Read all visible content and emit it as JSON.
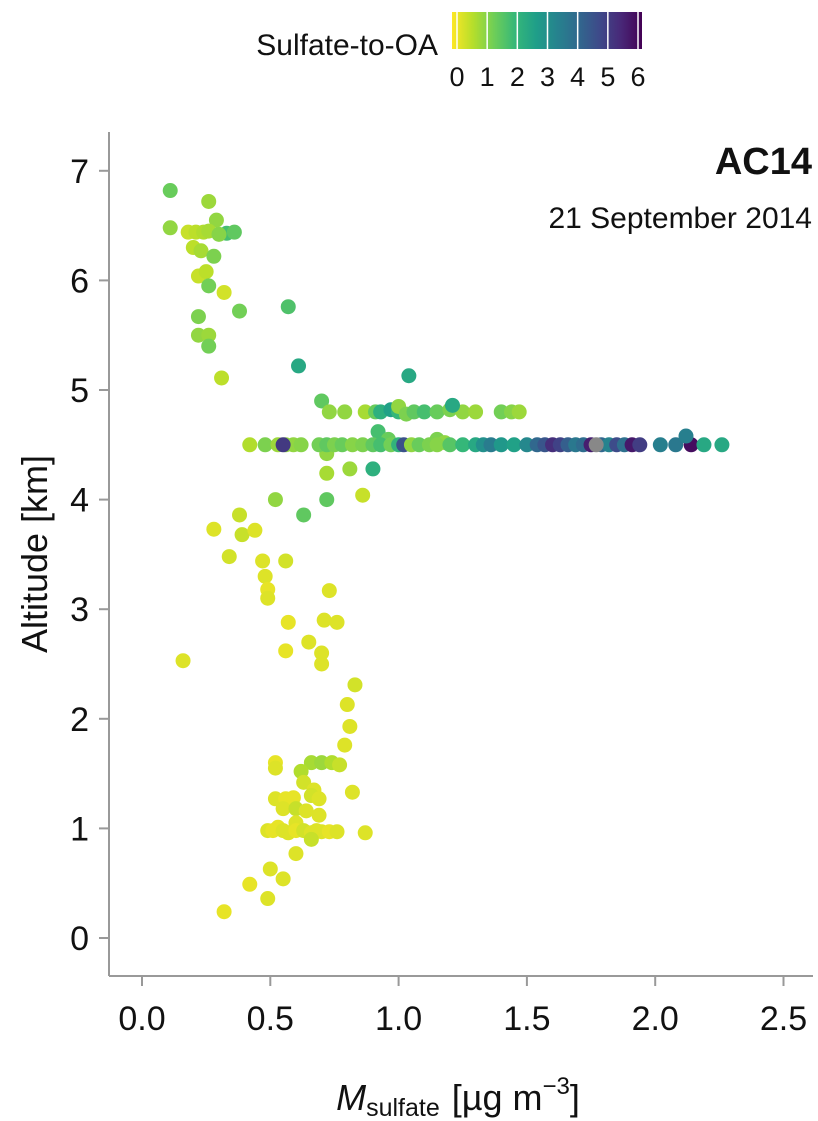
{
  "chart_data": {
    "type": "scatter",
    "title": "AC14",
    "subtitle": "21 September 2014",
    "xlabel": {
      "main": "M",
      "sub": "sulfate",
      "units": "[µg m",
      "exp": "−3",
      "close": "]"
    },
    "ylabel": "Altitude [km]",
    "xlim": [
      -0.13,
      2.62
    ],
    "ylim": [
      -0.35,
      7.35
    ],
    "xticks": [
      0.0,
      0.5,
      1.0,
      1.5,
      2.0,
      2.5
    ],
    "xtick_labels": [
      "0.0",
      "0.5",
      "1.0",
      "1.5",
      "2.0",
      "2.5"
    ],
    "yticks": [
      0,
      1,
      2,
      3,
      4,
      5,
      6,
      7
    ],
    "ytick_labels": [
      "0",
      "1",
      "2",
      "3",
      "4",
      "5",
      "6",
      "7"
    ],
    "grid": false,
    "colorbar": {
      "title": "Sulfate-to-OA",
      "range": [
        0,
        6
      ],
      "ticks": [
        0,
        1,
        2,
        3,
        4,
        5,
        6
      ],
      "tick_labels": [
        "0",
        "1",
        "2",
        "3",
        "4",
        "5",
        "6"
      ],
      "colormap": "viridis_r",
      "stops": [
        "#fde725",
        "#b5de2b",
        "#6ece58",
        "#35b779",
        "#1f9e89",
        "#26828e",
        "#31688e",
        "#3e4989",
        "#482878",
        "#440154"
      ]
    },
    "nan_color": "#888888",
    "series": [
      {
        "points": [
          [
            0.11,
            6.82,
            1.4
          ],
          [
            0.11,
            6.48,
            1.0
          ],
          [
            0.26,
            6.72,
            0.9
          ],
          [
            0.29,
            6.55,
            1.0
          ],
          [
            0.18,
            6.44,
            0.5
          ],
          [
            0.21,
            6.44,
            0.6
          ],
          [
            0.24,
            6.44,
            0.7
          ],
          [
            0.26,
            6.45,
            0.8
          ],
          [
            0.33,
            6.43,
            1.8
          ],
          [
            0.36,
            6.44,
            1.5
          ],
          [
            0.3,
            6.42,
            1.1
          ],
          [
            0.2,
            6.3,
            0.6
          ],
          [
            0.23,
            6.27,
            0.8
          ],
          [
            0.28,
            6.22,
            1.2
          ],
          [
            0.22,
            6.04,
            0.5
          ],
          [
            0.25,
            6.08,
            0.6
          ],
          [
            0.26,
            5.95,
            1.3
          ],
          [
            0.32,
            5.89,
            0.4
          ],
          [
            0.38,
            5.72,
            1.3
          ],
          [
            0.22,
            5.67,
            1.2
          ],
          [
            0.22,
            5.5,
            1.0
          ],
          [
            0.26,
            5.5,
            0.9
          ],
          [
            0.26,
            5.4,
            1.3
          ],
          [
            0.31,
            5.11,
            0.6
          ],
          [
            0.57,
            5.76,
            1.7
          ],
          [
            0.61,
            5.22,
            2.4
          ],
          [
            1.04,
            5.13,
            2.4
          ],
          [
            0.7,
            4.9,
            1.5
          ],
          [
            0.73,
            4.8,
            1.0
          ],
          [
            0.79,
            4.8,
            1.0
          ],
          [
            0.87,
            4.8,
            0.8
          ],
          [
            0.91,
            4.8,
            1.4
          ],
          [
            0.93,
            4.8,
            2.2
          ],
          [
            0.97,
            4.82,
            2.6
          ],
          [
            1.0,
            4.8,
            2.0
          ],
          [
            1.0,
            4.85,
            1.0
          ],
          [
            1.03,
            4.78,
            1.2
          ],
          [
            1.06,
            4.8,
            1.5
          ],
          [
            1.1,
            4.8,
            1.8
          ],
          [
            1.15,
            4.8,
            1.4
          ],
          [
            1.2,
            4.82,
            1.2
          ],
          [
            1.25,
            4.8,
            1.0
          ],
          [
            1.21,
            4.86,
            2.4
          ],
          [
            1.3,
            4.8,
            0.9
          ],
          [
            1.4,
            4.8,
            1.3
          ],
          [
            1.44,
            4.8,
            1.1
          ],
          [
            1.47,
            4.8,
            0.9
          ],
          [
            0.92,
            4.62,
            1.8
          ],
          [
            0.96,
            4.55,
            1.4
          ],
          [
            1.15,
            4.55,
            1.2
          ],
          [
            1.18,
            4.52,
            1.0
          ],
          [
            0.72,
            4.42,
            1.0
          ],
          [
            0.72,
            4.24,
            0.8
          ],
          [
            0.81,
            4.28,
            0.9
          ],
          [
            0.9,
            4.28,
            2.2
          ],
          [
            0.72,
            4.0,
            1.5
          ],
          [
            0.86,
            4.04,
            0.5
          ],
          [
            0.52,
            4.0,
            1.0
          ],
          [
            0.63,
            3.86,
            1.5
          ],
          [
            0.42,
            4.5,
            0.7
          ],
          [
            0.48,
            4.5,
            1.2
          ],
          [
            0.53,
            4.5,
            0.9
          ],
          [
            0.56,
            4.5,
            1.0
          ],
          [
            0.59,
            4.5,
            1.0
          ],
          [
            0.62,
            4.5,
            1.1
          ],
          [
            0.55,
            4.5,
            5.0
          ],
          [
            0.69,
            4.5,
            1.3
          ],
          [
            0.72,
            4.5,
            1.5
          ],
          [
            0.75,
            4.5,
            1.2
          ],
          [
            0.78,
            4.5,
            1.4
          ],
          [
            0.82,
            4.5,
            1.1
          ],
          [
            0.86,
            4.5,
            1.2
          ],
          [
            0.9,
            4.5,
            1.5
          ],
          [
            0.93,
            4.5,
            1.8
          ],
          [
            0.97,
            4.5,
            1.3
          ],
          [
            1.0,
            4.5,
            2.1
          ],
          [
            1.02,
            4.5,
            4.5
          ],
          [
            1.05,
            4.5,
            1.0
          ],
          [
            1.08,
            4.5,
            1.4
          ],
          [
            1.12,
            4.5,
            1.2
          ],
          [
            1.15,
            4.5,
            1.1
          ],
          [
            1.2,
            4.5,
            1.6
          ],
          [
            1.25,
            4.5,
            2.0
          ],
          [
            1.3,
            4.5,
            2.4
          ],
          [
            1.33,
            4.5,
            3.0
          ],
          [
            1.36,
            4.5,
            3.5
          ],
          [
            1.4,
            4.5,
            2.8
          ],
          [
            1.45,
            4.5,
            2.6
          ],
          [
            1.5,
            4.5,
            3.2
          ],
          [
            1.54,
            4.5,
            4.0
          ],
          [
            1.57,
            4.5,
            4.4
          ],
          [
            1.6,
            4.5,
            5.2
          ],
          [
            1.63,
            4.5,
            4.8
          ],
          [
            1.66,
            4.5,
            4.2
          ],
          [
            1.69,
            4.5,
            3.6
          ],
          [
            1.72,
            4.5,
            3.9
          ],
          [
            1.75,
            4.5,
            5.5
          ],
          [
            1.79,
            4.5,
            4.0
          ],
          [
            1.82,
            4.5,
            3.3
          ],
          [
            1.85,
            4.5,
            4.6
          ],
          [
            1.88,
            4.5,
            3.8
          ],
          [
            1.91,
            4.5,
            5.6
          ],
          [
            1.94,
            4.5,
            4.9
          ],
          [
            2.02,
            4.5,
            3.4
          ],
          [
            2.08,
            4.5,
            3.6
          ],
          [
            2.14,
            4.5,
            5.8
          ],
          [
            2.12,
            4.58,
            3.4
          ],
          [
            2.19,
            4.5,
            2.4
          ],
          [
            2.26,
            4.5,
            2.4
          ],
          [
            1.77,
            4.5,
            null
          ],
          [
            0.28,
            3.73,
            0.3
          ],
          [
            0.38,
            3.86,
            0.5
          ],
          [
            0.39,
            3.68,
            0.5
          ],
          [
            0.44,
            3.72,
            0.3
          ],
          [
            0.34,
            3.48,
            0.4
          ],
          [
            0.47,
            3.44,
            0.3
          ],
          [
            0.56,
            3.44,
            0.4
          ],
          [
            0.48,
            3.3,
            0.3
          ],
          [
            0.49,
            3.18,
            0.2
          ],
          [
            0.49,
            3.1,
            0.3
          ],
          [
            0.73,
            3.17,
            0.3
          ],
          [
            0.71,
            2.9,
            0.3
          ],
          [
            0.57,
            2.88,
            0.2
          ],
          [
            0.76,
            2.88,
            0.3
          ],
          [
            0.65,
            2.7,
            0.3
          ],
          [
            0.7,
            2.6,
            0.3
          ],
          [
            0.56,
            2.62,
            0.2
          ],
          [
            0.7,
            2.5,
            0.3
          ],
          [
            0.16,
            2.53,
            0.3
          ],
          [
            0.83,
            2.31,
            0.4
          ],
          [
            0.8,
            2.13,
            0.3
          ],
          [
            0.81,
            1.93,
            0.3
          ],
          [
            0.79,
            1.76,
            0.3
          ],
          [
            0.66,
            1.6,
            0.8
          ],
          [
            0.7,
            1.6,
            0.9
          ],
          [
            0.74,
            1.6,
            0.7
          ],
          [
            0.77,
            1.58,
            0.5
          ],
          [
            0.52,
            1.6,
            0.2
          ],
          [
            0.52,
            1.55,
            0.3
          ],
          [
            0.62,
            1.52,
            0.7
          ],
          [
            0.63,
            1.42,
            0.4
          ],
          [
            0.67,
            1.35,
            0.3
          ],
          [
            0.66,
            1.3,
            0.4
          ],
          [
            0.69,
            1.27,
            0.3
          ],
          [
            0.52,
            1.27,
            0.3
          ],
          [
            0.56,
            1.27,
            0.2
          ],
          [
            0.59,
            1.28,
            0.2
          ],
          [
            0.55,
            1.18,
            0.3
          ],
          [
            0.6,
            1.18,
            0.5
          ],
          [
            0.64,
            1.16,
            0.3
          ],
          [
            0.69,
            1.12,
            0.3
          ],
          [
            0.82,
            1.33,
            0.3
          ],
          [
            0.6,
            1.05,
            0.3
          ],
          [
            0.49,
            0.98,
            0.3
          ],
          [
            0.51,
            0.98,
            0.2
          ],
          [
            0.53,
            1.01,
            0.2
          ],
          [
            0.55,
            0.98,
            0.3
          ],
          [
            0.57,
            0.96,
            0.3
          ],
          [
            0.6,
            0.98,
            0.2
          ],
          [
            0.63,
            0.98,
            0.4
          ],
          [
            0.66,
            0.96,
            0.3
          ],
          [
            0.68,
            0.98,
            0.3
          ],
          [
            0.7,
            0.97,
            0.3
          ],
          [
            0.73,
            0.97,
            0.2
          ],
          [
            0.76,
            0.97,
            0.3
          ],
          [
            0.87,
            0.96,
            0.3
          ],
          [
            0.66,
            0.9,
            0.5
          ],
          [
            0.6,
            0.77,
            0.3
          ],
          [
            0.5,
            0.63,
            0.3
          ],
          [
            0.55,
            0.54,
            0.3
          ],
          [
            0.42,
            0.49,
            0.2
          ],
          [
            0.49,
            0.36,
            0.3
          ],
          [
            0.32,
            0.24,
            0.2
          ]
        ]
      }
    ]
  }
}
